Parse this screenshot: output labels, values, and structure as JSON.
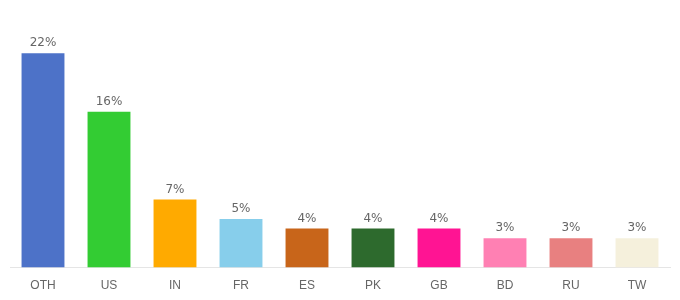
{
  "chart_data": {
    "type": "bar",
    "categories": [
      "OTH",
      "US",
      "IN",
      "FR",
      "ES",
      "PK",
      "GB",
      "BD",
      "RU",
      "TW"
    ],
    "values": [
      22,
      16,
      7,
      5,
      4,
      4,
      4,
      3,
      3,
      3
    ],
    "value_labels": [
      "22%",
      "16%",
      "7%",
      "5%",
      "4%",
      "4%",
      "4%",
      "3%",
      "3%",
      "3%"
    ],
    "colors": [
      "#4d72c8",
      "#33cc33",
      "#ffaa00",
      "#87ceeb",
      "#c8651a",
      "#2d6a2d",
      "#ff1493",
      "#ff80b3",
      "#e88080",
      "#f5f0dc"
    ],
    "ylim": [
      0,
      25
    ],
    "data_labels": true,
    "tick_labels": "x",
    "grid": false
  }
}
